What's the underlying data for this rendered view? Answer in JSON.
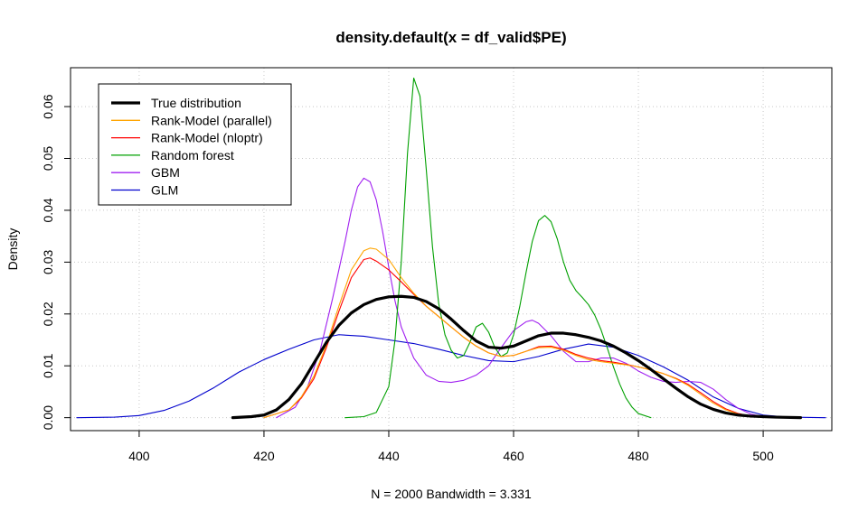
{
  "chart_data": {
    "type": "line",
    "title": "density.default(x = df_valid$PE)",
    "xlabel": "N = 2000   Bandwidth = 3.331",
    "ylabel": "Density",
    "xlim": [
      389,
      511
    ],
    "ylim": [
      -0.0025,
      0.0675
    ],
    "x_ticks": [
      400,
      420,
      440,
      460,
      480,
      500
    ],
    "y_ticks": [
      0.0,
      0.01,
      0.02,
      0.03,
      0.04,
      0.05,
      0.06
    ],
    "y_tick_labels": [
      "0.00",
      "0.01",
      "0.02",
      "0.03",
      "0.04",
      "0.05",
      "0.06"
    ],
    "grid": true,
    "legend_position": "top-left",
    "series": [
      {
        "name": "True distribution",
        "color": "#000000",
        "width": "thick",
        "points": [
          [
            415,
            0
          ],
          [
            418,
            0.0002
          ],
          [
            420,
            0.0005
          ],
          [
            422,
            0.0015
          ],
          [
            424,
            0.0035
          ],
          [
            426,
            0.0065
          ],
          [
            428,
            0.0105
          ],
          [
            430,
            0.0145
          ],
          [
            432,
            0.0178
          ],
          [
            434,
            0.0202
          ],
          [
            436,
            0.0218
          ],
          [
            438,
            0.0228
          ],
          [
            440,
            0.0233
          ],
          [
            442,
            0.0234
          ],
          [
            444,
            0.0232
          ],
          [
            446,
            0.0224
          ],
          [
            448,
            0.021
          ],
          [
            450,
            0.019
          ],
          [
            452,
            0.0168
          ],
          [
            454,
            0.0148
          ],
          [
            456,
            0.0136
          ],
          [
            458,
            0.0134
          ],
          [
            460,
            0.0138
          ],
          [
            462,
            0.0148
          ],
          [
            464,
            0.0158
          ],
          [
            466,
            0.0163
          ],
          [
            468,
            0.0163
          ],
          [
            470,
            0.016
          ],
          [
            472,
            0.0155
          ],
          [
            474,
            0.0148
          ],
          [
            476,
            0.0138
          ],
          [
            478,
            0.0125
          ],
          [
            480,
            0.011
          ],
          [
            482,
            0.0093
          ],
          [
            484,
            0.0075
          ],
          [
            486,
            0.0057
          ],
          [
            488,
            0.004
          ],
          [
            490,
            0.0026
          ],
          [
            492,
            0.0016
          ],
          [
            494,
            0.0009
          ],
          [
            496,
            0.0005
          ],
          [
            498,
            0.0003
          ],
          [
            500,
            0.0002
          ],
          [
            502,
            0.0001
          ],
          [
            506,
            0
          ]
        ]
      },
      {
        "name": "Rank-Model (parallel)",
        "color": "#FFA500",
        "width": "thin",
        "points": [
          [
            420,
            0
          ],
          [
            424,
            0.0015
          ],
          [
            426,
            0.004
          ],
          [
            428,
            0.008
          ],
          [
            430,
            0.014
          ],
          [
            432,
            0.0215
          ],
          [
            434,
            0.0285
          ],
          [
            436,
            0.0322
          ],
          [
            437,
            0.0327
          ],
          [
            438,
            0.0325
          ],
          [
            440,
            0.0305
          ],
          [
            442,
            0.027
          ],
          [
            444,
            0.024
          ],
          [
            446,
            0.0215
          ],
          [
            448,
            0.0195
          ],
          [
            450,
            0.0175
          ],
          [
            452,
            0.0155
          ],
          [
            454,
            0.0138
          ],
          [
            456,
            0.0125
          ],
          [
            458,
            0.0118
          ],
          [
            460,
            0.012
          ],
          [
            462,
            0.0128
          ],
          [
            464,
            0.0135
          ],
          [
            466,
            0.0136
          ],
          [
            468,
            0.013
          ],
          [
            470,
            0.012
          ],
          [
            472,
            0.0112
          ],
          [
            474,
            0.0108
          ],
          [
            476,
            0.0105
          ],
          [
            478,
            0.0102
          ],
          [
            480,
            0.0098
          ],
          [
            482,
            0.0092
          ],
          [
            484,
            0.0085
          ],
          [
            486,
            0.0075
          ],
          [
            488,
            0.0062
          ],
          [
            490,
            0.0045
          ],
          [
            492,
            0.0028
          ],
          [
            494,
            0.0015
          ],
          [
            496,
            0.0007
          ],
          [
            498,
            0.0003
          ],
          [
            500,
            0.0001
          ],
          [
            503,
            0
          ]
        ]
      },
      {
        "name": "Rank-Model (nloptr)",
        "color": "#FF0000",
        "width": "thin",
        "points": [
          [
            420,
            0
          ],
          [
            424,
            0.0015
          ],
          [
            426,
            0.0038
          ],
          [
            428,
            0.0075
          ],
          [
            430,
            0.0135
          ],
          [
            432,
            0.0205
          ],
          [
            434,
            0.027
          ],
          [
            436,
            0.0305
          ],
          [
            437,
            0.0308
          ],
          [
            438,
            0.0302
          ],
          [
            440,
            0.0285
          ],
          [
            442,
            0.0262
          ],
          [
            444,
            0.0238
          ],
          [
            446,
            0.0215
          ],
          [
            448,
            0.0195
          ],
          [
            450,
            0.0175
          ],
          [
            452,
            0.0155
          ],
          [
            454,
            0.0138
          ],
          [
            456,
            0.0125
          ],
          [
            458,
            0.0118
          ],
          [
            460,
            0.012
          ],
          [
            462,
            0.0128
          ],
          [
            464,
            0.0137
          ],
          [
            466,
            0.0138
          ],
          [
            468,
            0.0132
          ],
          [
            470,
            0.0122
          ],
          [
            472,
            0.0115
          ],
          [
            474,
            0.011
          ],
          [
            476,
            0.0107
          ],
          [
            478,
            0.0103
          ],
          [
            480,
            0.0098
          ],
          [
            482,
            0.0092
          ],
          [
            484,
            0.0085
          ],
          [
            486,
            0.0076
          ],
          [
            488,
            0.0064
          ],
          [
            490,
            0.0048
          ],
          [
            492,
            0.0031
          ],
          [
            494,
            0.0017
          ],
          [
            496,
            0.0008
          ],
          [
            498,
            0.0003
          ],
          [
            500,
            0.0001
          ],
          [
            503,
            0
          ]
        ]
      },
      {
        "name": "Random forest",
        "color": "#00A000",
        "width": "thin",
        "points": [
          [
            433,
            0
          ],
          [
            436,
            0.0002
          ],
          [
            438,
            0.001
          ],
          [
            440,
            0.006
          ],
          [
            441,
            0.015
          ],
          [
            442,
            0.03
          ],
          [
            443,
            0.051
          ],
          [
            444,
            0.0655
          ],
          [
            445,
            0.062
          ],
          [
            446,
            0.048
          ],
          [
            447,
            0.033
          ],
          [
            448,
            0.022
          ],
          [
            449,
            0.016
          ],
          [
            450,
            0.013
          ],
          [
            451,
            0.0115
          ],
          [
            452,
            0.012
          ],
          [
            453,
            0.0145
          ],
          [
            454,
            0.0175
          ],
          [
            455,
            0.0182
          ],
          [
            456,
            0.0165
          ],
          [
            457,
            0.0135
          ],
          [
            458,
            0.0118
          ],
          [
            459,
            0.0125
          ],
          [
            460,
            0.016
          ],
          [
            461,
            0.0215
          ],
          [
            462,
            0.028
          ],
          [
            463,
            0.034
          ],
          [
            464,
            0.038
          ],
          [
            465,
            0.039
          ],
          [
            466,
            0.0378
          ],
          [
            467,
            0.0345
          ],
          [
            468,
            0.03
          ],
          [
            469,
            0.0265
          ],
          [
            470,
            0.0245
          ],
          [
            471,
            0.0232
          ],
          [
            472,
            0.0218
          ],
          [
            473,
            0.0198
          ],
          [
            474,
            0.017
          ],
          [
            475,
            0.0135
          ],
          [
            476,
            0.0098
          ],
          [
            477,
            0.0065
          ],
          [
            478,
            0.0038
          ],
          [
            479,
            0.002
          ],
          [
            480,
            0.0008
          ],
          [
            482,
            0
          ]
        ]
      },
      {
        "name": "GBM",
        "color": "#A020F0",
        "width": "thin",
        "points": [
          [
            422,
            0
          ],
          [
            425,
            0.002
          ],
          [
            427,
            0.006
          ],
          [
            429,
            0.013
          ],
          [
            431,
            0.023
          ],
          [
            433,
            0.034
          ],
          [
            434,
            0.04
          ],
          [
            435,
            0.0445
          ],
          [
            436,
            0.0462
          ],
          [
            437,
            0.0455
          ],
          [
            438,
            0.042
          ],
          [
            439,
            0.036
          ],
          [
            440,
            0.029
          ],
          [
            441,
            0.0225
          ],
          [
            442,
            0.0175
          ],
          [
            444,
            0.0115
          ],
          [
            446,
            0.0082
          ],
          [
            448,
            0.007
          ],
          [
            450,
            0.0068
          ],
          [
            452,
            0.0072
          ],
          [
            454,
            0.0082
          ],
          [
            456,
            0.01
          ],
          [
            458,
            0.0135
          ],
          [
            460,
            0.0168
          ],
          [
            462,
            0.0185
          ],
          [
            463,
            0.0188
          ],
          [
            464,
            0.0182
          ],
          [
            466,
            0.0158
          ],
          [
            468,
            0.0128
          ],
          [
            470,
            0.0108
          ],
          [
            472,
            0.0108
          ],
          [
            474,
            0.0115
          ],
          [
            476,
            0.0115
          ],
          [
            478,
            0.0105
          ],
          [
            480,
            0.009
          ],
          [
            482,
            0.0078
          ],
          [
            484,
            0.007
          ],
          [
            486,
            0.0068
          ],
          [
            488,
            0.007
          ],
          [
            490,
            0.0068
          ],
          [
            492,
            0.0055
          ],
          [
            494,
            0.0035
          ],
          [
            496,
            0.0018
          ],
          [
            498,
            0.0007
          ],
          [
            500,
            0.0002
          ],
          [
            503,
            0
          ]
        ]
      },
      {
        "name": "GLM",
        "color": "#0000CD",
        "width": "thin",
        "points": [
          [
            390,
            0
          ],
          [
            396,
            0.0001
          ],
          [
            400,
            0.0004
          ],
          [
            404,
            0.0014
          ],
          [
            408,
            0.0032
          ],
          [
            412,
            0.0058
          ],
          [
            416,
            0.0088
          ],
          [
            420,
            0.0112
          ],
          [
            424,
            0.0132
          ],
          [
            428,
            0.015
          ],
          [
            432,
            0.016
          ],
          [
            436,
            0.0157
          ],
          [
            440,
            0.015
          ],
          [
            444,
            0.0143
          ],
          [
            448,
            0.0132
          ],
          [
            452,
            0.012
          ],
          [
            456,
            0.011
          ],
          [
            460,
            0.0108
          ],
          [
            464,
            0.0118
          ],
          [
            468,
            0.0132
          ],
          [
            472,
            0.0142
          ],
          [
            476,
            0.0136
          ],
          [
            480,
            0.012
          ],
          [
            484,
            0.0098
          ],
          [
            488,
            0.0072
          ],
          [
            492,
            0.004
          ],
          [
            496,
            0.0018
          ],
          [
            500,
            0.0005
          ],
          [
            504,
            0.0001
          ],
          [
            510,
            0
          ]
        ]
      }
    ]
  }
}
